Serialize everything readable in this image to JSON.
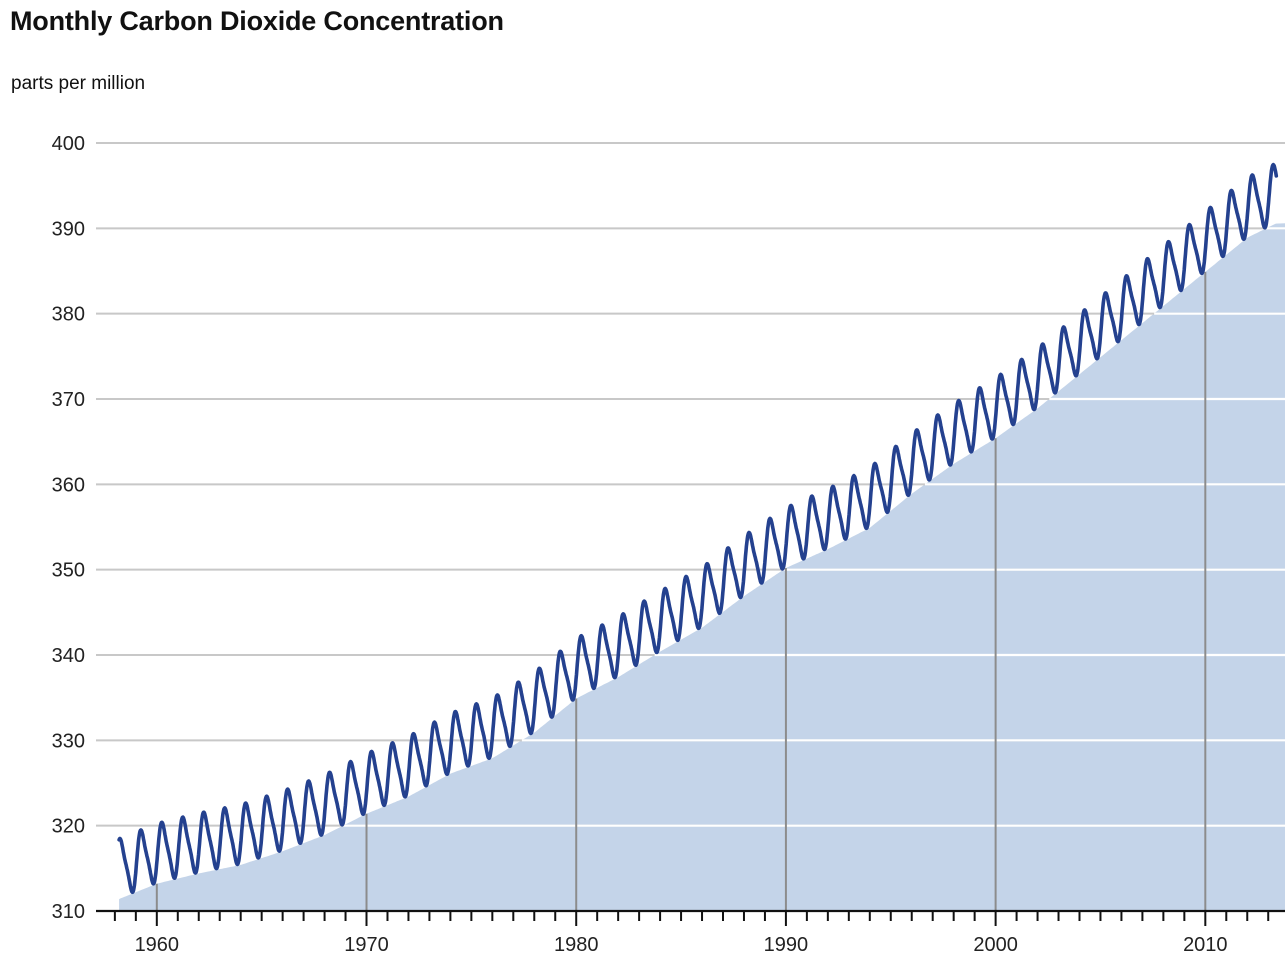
{
  "chart_data": {
    "type": "line",
    "title": "Monthly Carbon Dioxide Concentration",
    "ylabel": "parts per million",
    "xlabel": "",
    "xlim": [
      1957.1,
      2013.8
    ],
    "ylim": [
      310,
      400
    ],
    "yticks": [
      310,
      320,
      330,
      340,
      350,
      360,
      370,
      380,
      390,
      400
    ],
    "xticks_major": [
      1960,
      1970,
      1980,
      1990,
      2000,
      2010
    ],
    "grid": true,
    "area_fill": true,
    "series": [
      {
        "style": "seasonal-monthly",
        "color": "#24418f",
        "start": 1958.2,
        "end": 2013.4,
        "seasonal_amplitude": 3.2,
        "trend": [
          [
            1958.2,
            315.0
          ],
          [
            1960,
            316.8
          ],
          [
            1962,
            318.0
          ],
          [
            1964,
            319.0
          ],
          [
            1966,
            320.6
          ],
          [
            1968,
            322.5
          ],
          [
            1970,
            325.0
          ],
          [
            1972,
            327.0
          ],
          [
            1974,
            329.7
          ],
          [
            1976,
            331.5
          ],
          [
            1978,
            334.5
          ],
          [
            1980,
            338.5
          ],
          [
            1982,
            341.0
          ],
          [
            1984,
            344.0
          ],
          [
            1986,
            346.8
          ],
          [
            1988,
            350.5
          ],
          [
            1990,
            353.8
          ],
          [
            1992,
            356.0
          ],
          [
            1994,
            358.5
          ],
          [
            1996,
            362.5
          ],
          [
            1998,
            366.0
          ],
          [
            2000,
            369.0
          ],
          [
            2002,
            372.5
          ],
          [
            2004,
            376.5
          ],
          [
            2006,
            380.5
          ],
          [
            2008,
            384.5
          ],
          [
            2010,
            388.5
          ],
          [
            2012,
            392.5
          ],
          [
            2013.4,
            394.2
          ]
        ]
      }
    ]
  }
}
